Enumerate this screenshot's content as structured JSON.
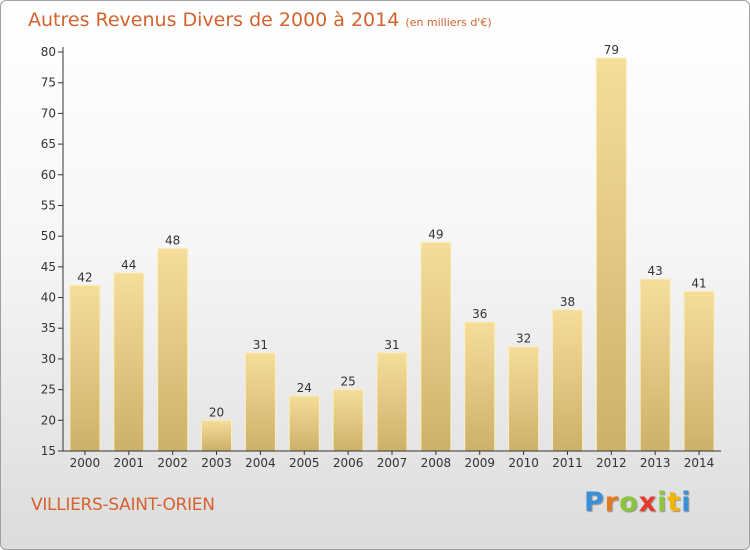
{
  "title": "Autres Revenus Divers de 2000 à 2014",
  "unit_label": "(en milliers d'€)",
  "location": "VILLIERS-SAINT-ORIEN",
  "logo": {
    "letters": [
      "P",
      "r",
      "o",
      "x",
      "i",
      "t",
      "i"
    ],
    "colors": [
      "#3a8fd6",
      "#e87722",
      "#8cc63f",
      "#e63b2e",
      "#8cc63f",
      "#f2b600",
      "#3a8fd6"
    ]
  },
  "colors": {
    "accent": "#d4622e",
    "bar_light": "#f5dd9a",
    "bar_dark": "#cdb16a",
    "axis": "#333333"
  },
  "chart_data": {
    "type": "bar",
    "title": "Autres Revenus Divers de 2000 à 2014",
    "xlabel": "",
    "ylabel": "en milliers d'€",
    "categories": [
      "2000",
      "2001",
      "2002",
      "2003",
      "2004",
      "2005",
      "2006",
      "2007",
      "2008",
      "2009",
      "2010",
      "2011",
      "2012",
      "2013",
      "2014"
    ],
    "values": [
      42,
      44,
      48,
      20,
      31,
      24,
      25,
      31,
      49,
      36,
      32,
      38,
      79,
      43,
      41
    ],
    "ylim": [
      15,
      80
    ],
    "yticks": [
      15,
      20,
      25,
      30,
      35,
      40,
      45,
      50,
      55,
      60,
      65,
      70,
      75,
      80
    ],
    "grid": false,
    "legend": "none"
  }
}
